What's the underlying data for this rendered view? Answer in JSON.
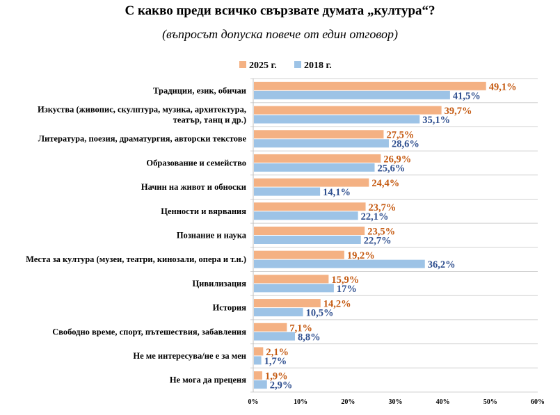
{
  "title": "С какво преди всичко свързвате думата „култура“?",
  "subtitle": "(въпросът допуска повече от един отговор)",
  "chart_data": {
    "type": "bar",
    "orientation": "horizontal",
    "categories": [
      [
        "Традиции, език, обичаи"
      ],
      [
        "Изкуства (живопис, скулптура, музика, архитектура,",
        "театър, танц и др.)"
      ],
      [
        "Литература, поезия, драматургия, авторски текстове"
      ],
      [
        "Образование и семейство"
      ],
      [
        "Начин на живот и обноски"
      ],
      [
        "Ценности и вярвания"
      ],
      [
        "Познание и наука"
      ],
      [
        "Места за култура (музеи, театри, кинозали, опера и т.н.)"
      ],
      [
        "Цивилизация"
      ],
      [
        "История"
      ],
      [
        "Свободно време, спорт, пътешествия, забавления"
      ],
      [
        "Не ме интересува/не е за мен"
      ],
      [
        "Не мога да преценя"
      ]
    ],
    "series": [
      {
        "name": "2025 г.",
        "color": "#f4b183",
        "label_color": "#c55a11",
        "values": [
          49.1,
          39.7,
          27.5,
          26.9,
          24.4,
          23.7,
          23.5,
          19.2,
          15.9,
          14.2,
          7.1,
          2.1,
          1.9
        ],
        "labels": [
          "49,1%",
          "39,7%",
          "27,5%",
          "26,9%",
          "24,4%",
          "23,7%",
          "23,5%",
          "19,2%",
          "15,9%",
          "14,2%",
          "7,1%",
          "2,1%",
          "1,9%"
        ]
      },
      {
        "name": "2018 г.",
        "color": "#9dc3e6",
        "label_color": "#2f4f8f",
        "values": [
          41.5,
          35.1,
          28.6,
          25.6,
          14.1,
          22.1,
          22.7,
          36.2,
          17,
          10.5,
          8.8,
          1.7,
          2.9
        ],
        "labels": [
          "41,5%",
          "35,1%",
          "28,6%",
          "25,6%",
          "14,1%",
          "22,1%",
          "22,7%",
          "36,2%",
          "17%",
          "10,5%",
          "8,8%",
          "1,7%",
          "2,9%"
        ]
      }
    ],
    "xlim": [
      0,
      60
    ],
    "xticks": [
      0,
      10,
      20,
      30,
      40,
      50,
      60
    ],
    "xtick_labels": [
      "0%",
      "10%",
      "20%",
      "30%",
      "40%",
      "50%",
      "60%"
    ],
    "legend_position": "top-center",
    "grid": "horizontal separators between categories"
  }
}
